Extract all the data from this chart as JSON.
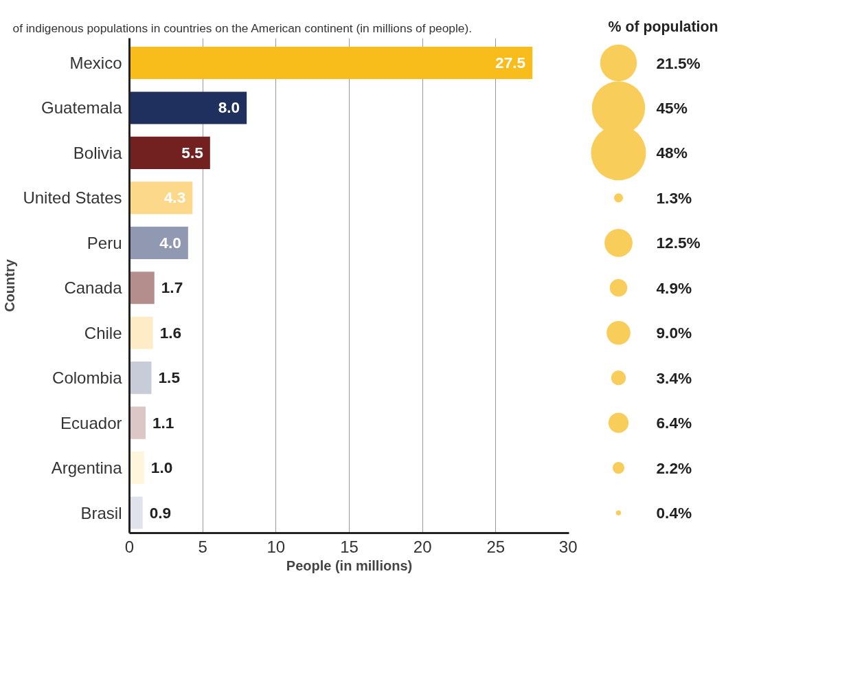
{
  "chart_data": [
    {
      "type": "bar",
      "orientation": "horizontal",
      "title": "of indigenous populations in countries on the American continent (in millions of people).",
      "xlabel": "People (in millions)",
      "ylabel": "Country",
      "categories": [
        "Mexico",
        "Guatemala",
        "Bolivia",
        "United States",
        "Peru",
        "Canada",
        "Chile",
        "Colombia",
        "Ecuador",
        "Argentina",
        "Brasil"
      ],
      "values": [
        27.5,
        8.0,
        5.5,
        4.3,
        4.0,
        1.7,
        1.6,
        1.5,
        1.1,
        1.0,
        0.9
      ],
      "value_labels": [
        "27.5",
        "8.0",
        "5.5",
        "4.3",
        "4.0",
        "1.7",
        "1.6",
        "1.5",
        "1.1",
        "1.0",
        "0.9"
      ],
      "colors": [
        "#f8bc1b",
        "#1f2f5e",
        "#722020",
        "#fcd98a",
        "#9098b2",
        "#b48e8c",
        "#fdecc6",
        "#c8ccd9",
        "#dcc6c6",
        "#fef5dc",
        "#e0e3eb"
      ],
      "xlim": [
        0,
        30
      ],
      "xticks": [
        0,
        5,
        10,
        15,
        20,
        25,
        30
      ],
      "grid": "x"
    },
    {
      "type": "other",
      "title": "% of population",
      "categories": [
        null,
        null,
        null,
        null,
        null,
        null,
        null,
        null,
        null,
        null,
        null
      ],
      "values": [
        21.5,
        45,
        48,
        1.3,
        12.5,
        4.9,
        9.0,
        3.4,
        6.4,
        2.2,
        0.4
      ],
      "value_labels": [
        "21.5%",
        "45%",
        "48%",
        "1.3%",
        "12.5%",
        "4.9%",
        "9.0%",
        "3.4%",
        "6.4%",
        "2.2%",
        "0.4%"
      ],
      "color": "#f9cd5a"
    }
  ]
}
